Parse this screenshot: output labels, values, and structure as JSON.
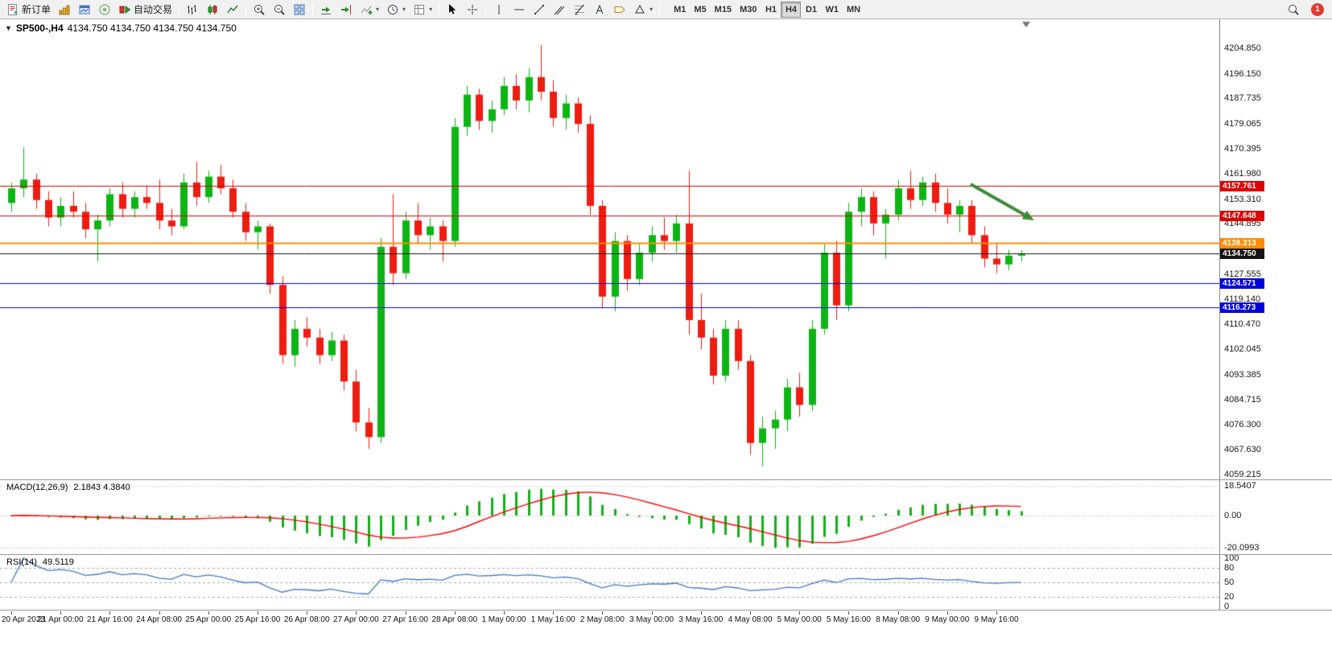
{
  "toolbar": {
    "new_order": "新订单",
    "autotrading": "自动交易",
    "timeframes": [
      "M1",
      "M5",
      "M15",
      "M30",
      "H1",
      "H4",
      "D1",
      "W1",
      "MN"
    ],
    "active_timeframe": "H4",
    "notification_badge": "1"
  },
  "chart_header": {
    "symbol_period": "SP500-,H4",
    "ohlc": "4134.750 4134.750 4134.750 4134.750"
  },
  "macd_panel": {
    "label": "MACD(12,26,9)",
    "values": "2.1843 4.3840",
    "axis_labels": [
      "18.5407",
      "0.00",
      "-20.0993"
    ]
  },
  "rsi_panel": {
    "label": "RSI(14)",
    "value": "49.5119",
    "axis_labels": [
      "100",
      "80",
      "50",
      "20",
      "0"
    ]
  },
  "chart_data": {
    "type": "candlestick",
    "title": "SP500-,H4",
    "symbol": "SP500-",
    "timeframe": "H4",
    "current_price": 4134.75,
    "visible_price_range": [
      4059.215,
      4204.85
    ],
    "price_axis_labels": [
      "4204.850",
      "4196.150",
      "4187.735",
      "4179.065",
      "4170.395",
      "4161.980",
      "4153.310",
      "4144.895",
      "4136.225",
      "4127.555",
      "4119.140",
      "4110.470",
      "4102.045",
      "4093.385",
      "4084.715",
      "4076.300",
      "4067.630",
      "4059.215"
    ],
    "time_labels": [
      "20 Apr 2023",
      "21 Apr 00:00",
      "21 Apr 16:00",
      "24 Apr 08:00",
      "25 Apr 00:00",
      "25 Apr 16:00",
      "26 Apr 08:00",
      "27 Apr 00:00",
      "27 Apr 16:00",
      "28 Apr 08:00",
      "1 May 00:00",
      "1 May 16:00",
      "2 May 08:00",
      "3 May 00:00",
      "3 May 16:00",
      "4 May 08:00",
      "5 May 00:00",
      "5 May 16:00",
      "8 May 08:00",
      "9 May 00:00",
      "9 May 16:00"
    ],
    "bars_per_label": 4,
    "candle_colors": {
      "up": "#0db514",
      "down": "#ee1c11"
    },
    "candles": [
      [
        4152,
        4159,
        4149,
        4157
      ],
      [
        4157,
        4171,
        4154,
        4160
      ],
      [
        4160,
        4162,
        4150,
        4153
      ],
      [
        4153,
        4156,
        4144,
        4147
      ],
      [
        4147,
        4154,
        4144,
        4151
      ],
      [
        4151,
        4156,
        4147,
        4149
      ],
      [
        4149,
        4152,
        4140,
        4143
      ],
      [
        4143,
        4148,
        4132,
        4146
      ],
      [
        4146,
        4157,
        4144,
        4155
      ],
      [
        4155,
        4159,
        4147,
        4150
      ],
      [
        4150,
        4156,
        4147,
        4154
      ],
      [
        4154,
        4158,
        4150,
        4152
      ],
      [
        4152,
        4160,
        4143,
        4146
      ],
      [
        4146,
        4150,
        4141,
        4144
      ],
      [
        4144,
        4162,
        4143,
        4159
      ],
      [
        4159,
        4166,
        4151,
        4154
      ],
      [
        4154,
        4163,
        4152,
        4161
      ],
      [
        4161,
        4165,
        4155,
        4157
      ],
      [
        4157,
        4160,
        4147,
        4149
      ],
      [
        4149,
        4152,
        4139,
        4142
      ],
      [
        4142,
        4146,
        4136,
        4144
      ],
      [
        4144,
        4145,
        4121,
        4124
      ],
      [
        4124,
        4127,
        4097,
        4100
      ],
      [
        4100,
        4112,
        4096,
        4109
      ],
      [
        4109,
        4113,
        4103,
        4106
      ],
      [
        4106,
        4109,
        4097,
        4100
      ],
      [
        4100,
        4108,
        4098,
        4105
      ],
      [
        4105,
        4107,
        4088,
        4091
      ],
      [
        4091,
        4095,
        4074,
        4077
      ],
      [
        4077,
        4082,
        4068,
        4072
      ],
      [
        4072,
        4140,
        4070,
        4137
      ],
      [
        4137,
        4155,
        4124,
        4128
      ],
      [
        4128,
        4149,
        4126,
        4146
      ],
      [
        4146,
        4152,
        4138,
        4141
      ],
      [
        4141,
        4147,
        4136,
        4144
      ],
      [
        4144,
        4146,
        4132,
        4139
      ],
      [
        4139,
        4181,
        4137,
        4178
      ],
      [
        4178,
        4192,
        4175,
        4189
      ],
      [
        4189,
        4191,
        4177,
        4180
      ],
      [
        4180,
        4187,
        4176,
        4184
      ],
      [
        4184,
        4195,
        4182,
        4192
      ],
      [
        4192,
        4196,
        4184,
        4187
      ],
      [
        4187,
        4198,
        4183,
        4195
      ],
      [
        4195,
        4206,
        4187,
        4190
      ],
      [
        4190,
        4194,
        4178,
        4181
      ],
      [
        4181,
        4189,
        4177,
        4186
      ],
      [
        4186,
        4188,
        4176,
        4179
      ],
      [
        4179,
        4182,
        4148,
        4151
      ],
      [
        4151,
        4153,
        4116,
        4120
      ],
      [
        4120,
        4142,
        4115,
        4139
      ],
      [
        4139,
        4141,
        4122,
        4126
      ],
      [
        4126,
        4138,
        4124,
        4135
      ],
      [
        4135,
        4144,
        4132,
        4141
      ],
      [
        4141,
        4147,
        4136,
        4139
      ],
      [
        4139,
        4148,
        4135,
        4145
      ],
      [
        4145,
        4163,
        4107,
        4112
      ],
      [
        4112,
        4121,
        4102,
        4106
      ],
      [
        4106,
        4109,
        4090,
        4093
      ],
      [
        4093,
        4112,
        4091,
        4109
      ],
      [
        4109,
        4112,
        4095,
        4098
      ],
      [
        4098,
        4100,
        4066,
        4070
      ],
      [
        4070,
        4079,
        4062,
        4075
      ],
      [
        4075,
        4081,
        4068,
        4078
      ],
      [
        4078,
        4092,
        4074,
        4089
      ],
      [
        4089,
        4094,
        4079,
        4083
      ],
      [
        4083,
        4112,
        4081,
        4109
      ],
      [
        4109,
        4138,
        4107,
        4135
      ],
      [
        4135,
        4139,
        4112,
        4117
      ],
      [
        4117,
        4152,
        4115,
        4149
      ],
      [
        4149,
        4157,
        4144,
        4154
      ],
      [
        4154,
        4156,
        4141,
        4145
      ],
      [
        4145,
        4150,
        4133,
        4148
      ],
      [
        4148,
        4160,
        4146,
        4157
      ],
      [
        4157,
        4163,
        4150,
        4153
      ],
      [
        4153,
        4161,
        4151,
        4159
      ],
      [
        4159,
        4162,
        4149,
        4152
      ],
      [
        4152,
        4157,
        4145,
        4148
      ],
      [
        4148,
        4153,
        4142,
        4151
      ],
      [
        4151,
        4153,
        4138,
        4141
      ],
      [
        4141,
        4144,
        4130,
        4133
      ],
      [
        4133,
        4138,
        4128,
        4131
      ],
      [
        4131,
        4136,
        4129,
        4134
      ],
      [
        4134,
        4136,
        4132,
        4134.75
      ]
    ],
    "level_lines": [
      {
        "price": 4157.761,
        "label": "4157.761",
        "color": "#dd0000",
        "width": 1
      },
      {
        "price": 4147.648,
        "label": "4147.648",
        "color": "#dd0000",
        "width": 1
      },
      {
        "price": 4138.313,
        "label": "4138.313",
        "color": "#ff8c00",
        "width": 2
      },
      {
        "price": 4134.75,
        "label": "4134.750",
        "color": "#151515",
        "width": 1
      },
      {
        "price": 4124.571,
        "label": "4124.571",
        "color": "#0000dd",
        "width": 1
      },
      {
        "price": 4116.273,
        "label": "4116.273",
        "color": "#0000dd",
        "width": 1
      }
    ],
    "indicators": [
      {
        "name": "MACD",
        "params": [
          12,
          26,
          9
        ],
        "display_values": [
          2.1843,
          4.384
        ],
        "histogram_color": "#11b117",
        "signal_color": "#ff0000",
        "axis_labels": [
          "18.5407",
          "0.00",
          "-20.0993"
        ]
      },
      {
        "name": "RSI",
        "params": [
          14
        ],
        "display_value": 49.5119,
        "levels": [
          80,
          50,
          20
        ],
        "line_color": "#4577c8",
        "axis_labels": [
          "100",
          "80",
          "50",
          "20",
          "0"
        ]
      }
    ],
    "annotations": [
      {
        "type": "trend-arrow",
        "direction": "down-right",
        "color": "#3d8b37"
      }
    ]
  }
}
